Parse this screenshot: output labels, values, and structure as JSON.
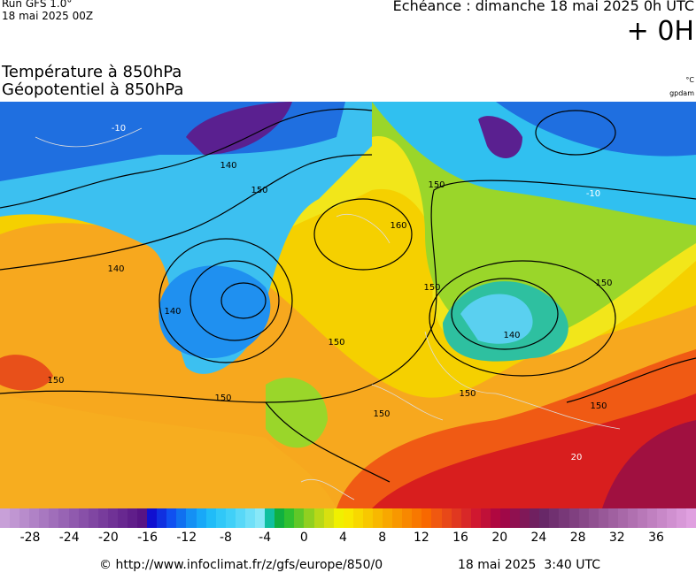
{
  "header": {
    "run": "Run GFS 1.0°",
    "run_date": "18 mai 2025 00Z",
    "forecast": "Echéance : dimanche 18 mai 2025 0h UTC",
    "step": "+ 0H"
  },
  "titles": [
    "Température à 850hPa",
    "Géopotentiel à 850hPa"
  ],
  "units": {
    "temperature": "°C",
    "geopotential": "gpdam"
  },
  "contour_labels": [
    "140",
    "150",
    "150",
    "160",
    "140",
    "140",
    "150",
    "150",
    "140",
    "150",
    "150",
    "150",
    "150",
    "150",
    "150",
    "-10",
    "-10",
    "20"
  ],
  "colorbar": {
    "ticks": [
      -28,
      -24,
      -20,
      -16,
      -12,
      -8,
      -4,
      0,
      4,
      8,
      12,
      16,
      20,
      24,
      28,
      32,
      36
    ]
  },
  "footer": {
    "source": "© http://www.infoclimat.fr/z/gfs/europe/850/0",
    "generated": "18 mai 2025  3:40 UTC"
  }
}
